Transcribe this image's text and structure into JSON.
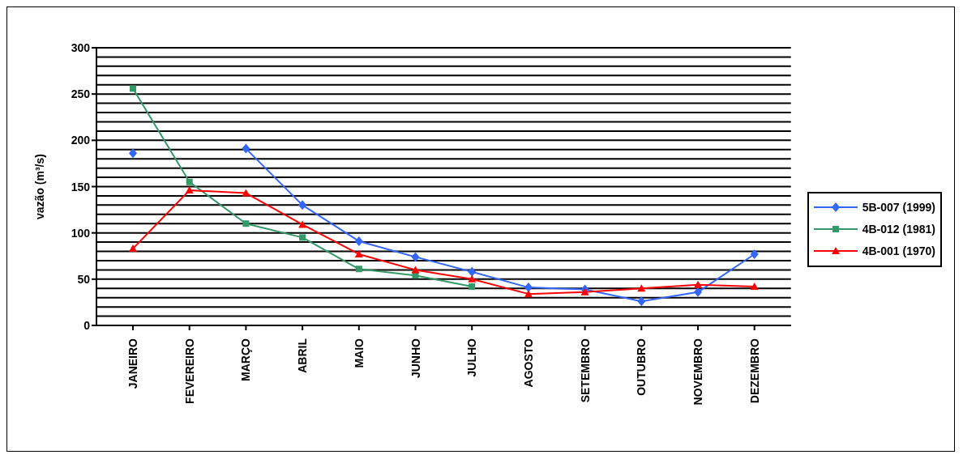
{
  "chart_data": {
    "type": "line",
    "ylabel": "vazão (m³/s)",
    "categories": [
      "JANEIRO",
      "FEVEREIRO",
      "MARÇO",
      "ABRIL",
      "MAIO",
      "JUNHO",
      "JULHO",
      "AGOSTO",
      "SETEMBRO",
      "OUTUBRO",
      "NOVEMBRO",
      "DEZEMBRO"
    ],
    "series": [
      {
        "name": "5B-007 (1999)",
        "color": "#3366ff",
        "marker": "diamond",
        "values": [
          186,
          null,
          191,
          130,
          91,
          74,
          58,
          41,
          39,
          26,
          36,
          77
        ]
      },
      {
        "name": "4B-012 (1981)",
        "color": "#339966",
        "marker": "square",
        "values": [
          256,
          155,
          110,
          95,
          61,
          54,
          42,
          null,
          null,
          null,
          null,
          null
        ]
      },
      {
        "name": "4B-001 (1970)",
        "color": "#ff0000",
        "marker": "triangle",
        "values": [
          83,
          146,
          143,
          109,
          77,
          60,
          50,
          34,
          36,
          40,
          44,
          42
        ]
      }
    ],
    "ylim": [
      0,
      300
    ],
    "yticks": [
      0,
      {
        "value": 10,
        "label": null
      },
      {
        "value": 20,
        "label": null
      },
      {
        "value": 30,
        "label": null
      },
      {
        "value": 40,
        "label": null
      },
      50,
      {
        "value": 60,
        "label": null
      },
      {
        "value": 70,
        "label": null
      },
      {
        "value": 80,
        "label": null
      },
      {
        "value": 90,
        "label": null
      },
      100,
      {
        "value": 110,
        "label": null
      },
      {
        "value": 120,
        "label": null
      },
      {
        "value": 130,
        "label": null
      },
      {
        "value": 140,
        "label": null
      },
      150,
      {
        "value": 160,
        "label": null
      },
      {
        "value": 170,
        "label": null
      },
      {
        "value": 180,
        "label": null
      },
      {
        "value": 190,
        "label": null
      },
      200,
      {
        "value": 210,
        "label": null
      },
      {
        "value": 220,
        "label": null
      },
      {
        "value": 230,
        "label": null
      },
      {
        "value": 240,
        "label": null
      },
      250,
      {
        "value": 260,
        "label": null
      },
      {
        "value": 270,
        "label": null
      },
      {
        "value": 280,
        "label": null
      },
      {
        "value": 290,
        "label": null
      },
      300
    ],
    "grid": "y",
    "legend": "right",
    "line_style": "solid"
  }
}
